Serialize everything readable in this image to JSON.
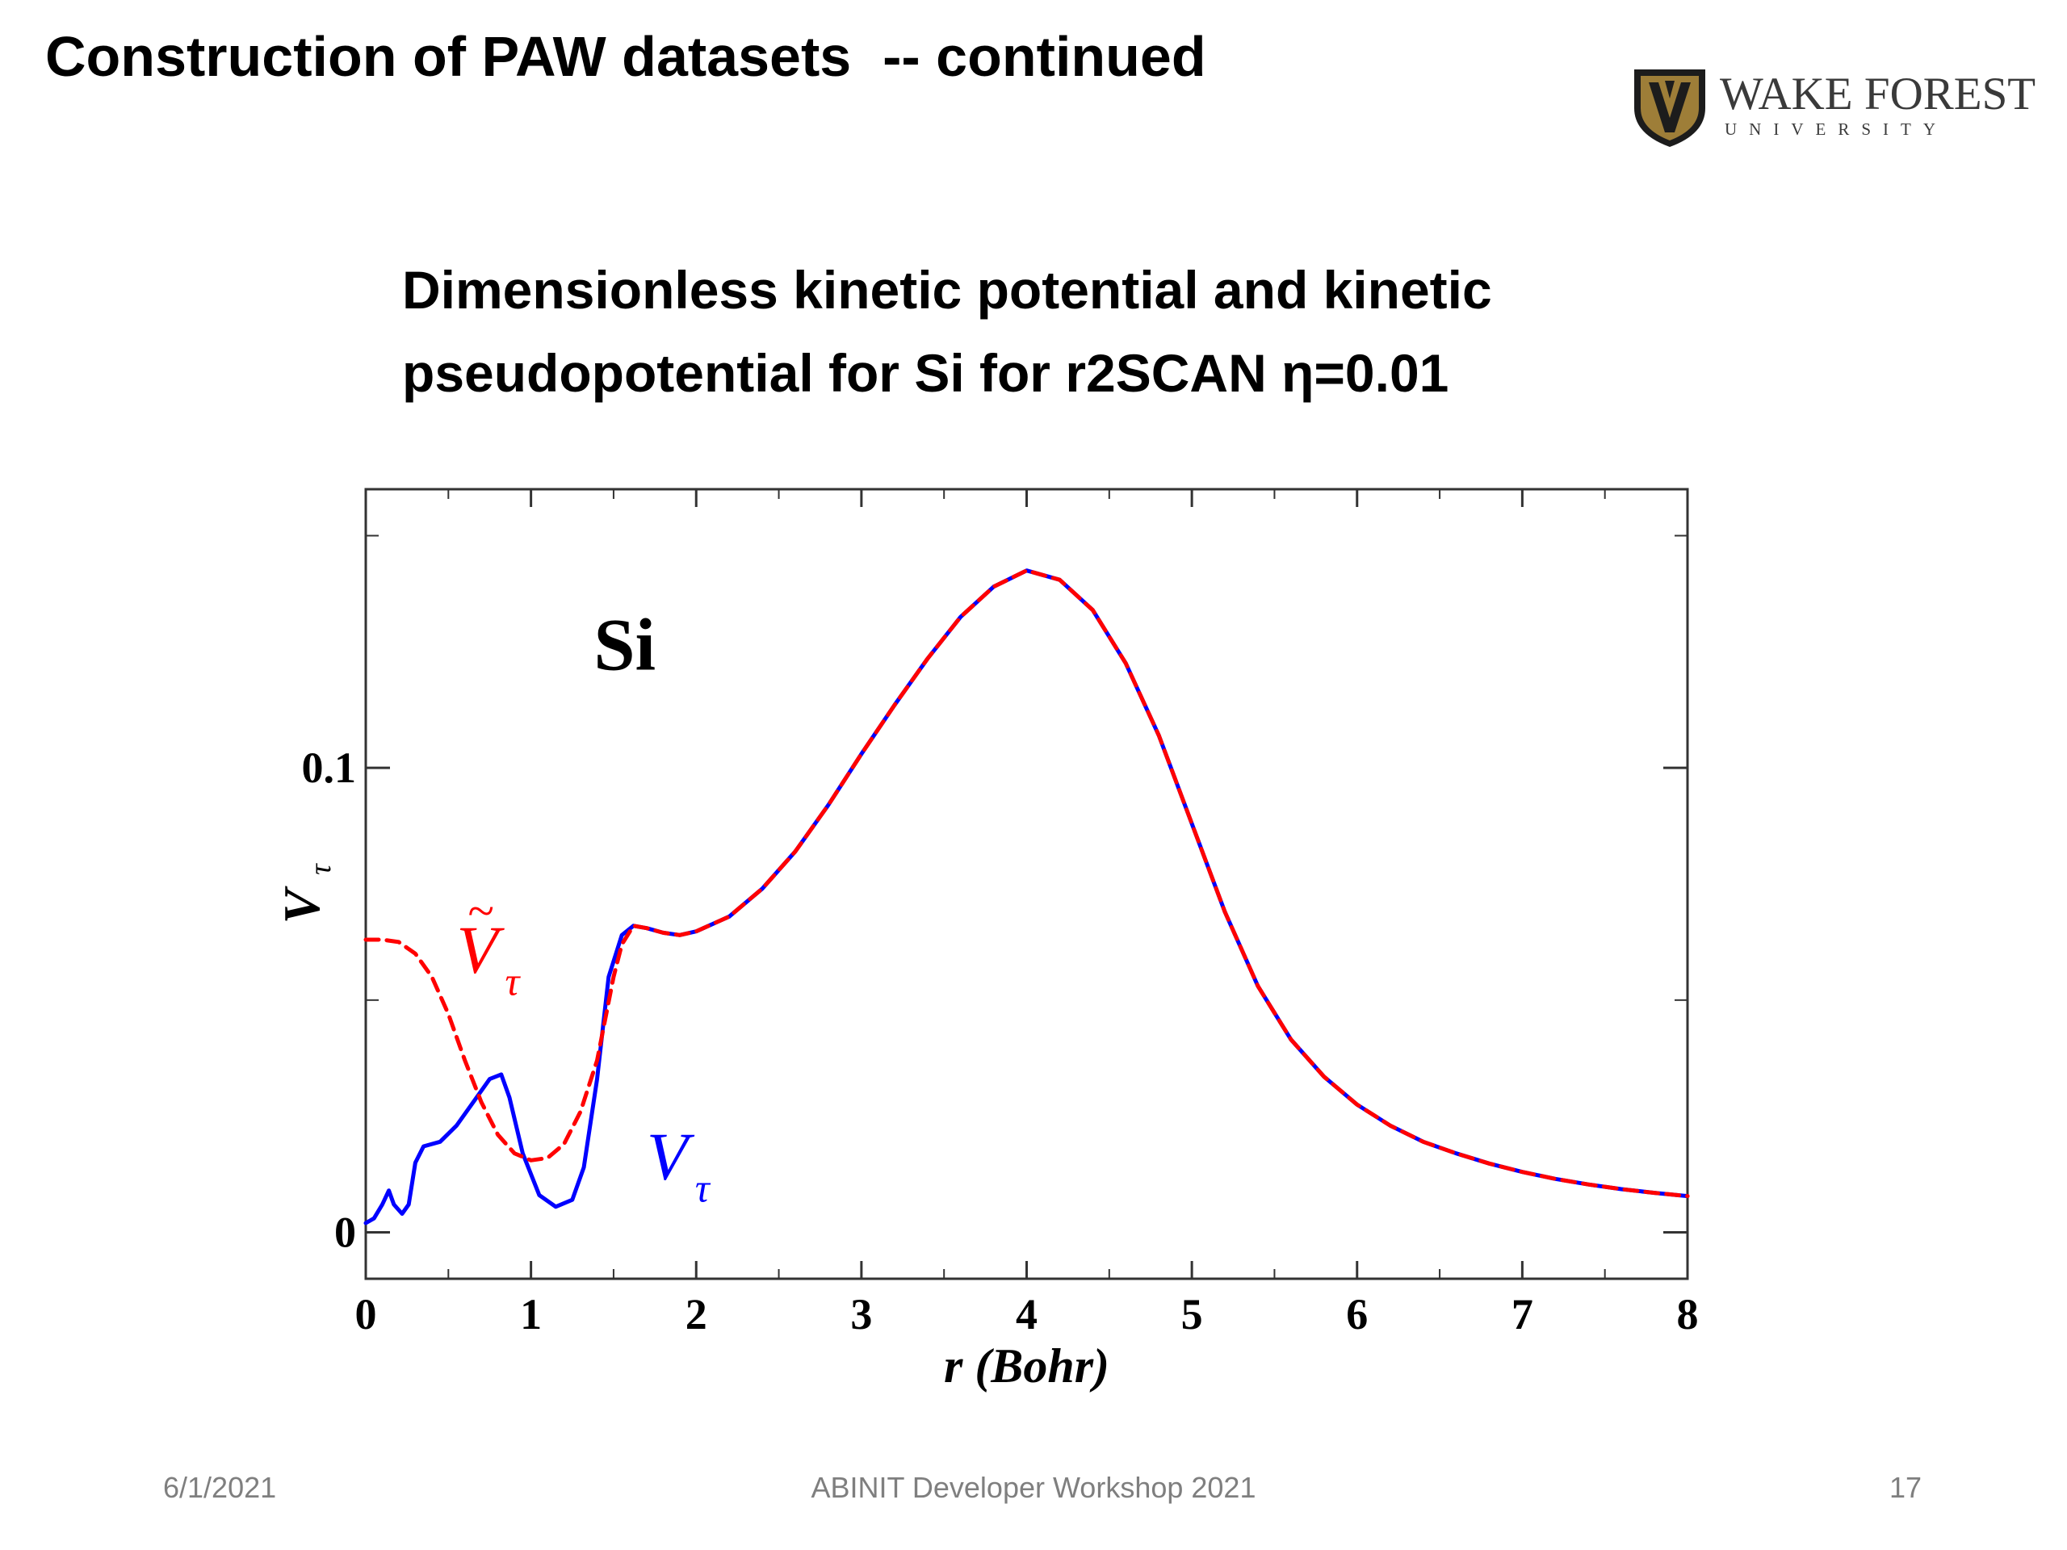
{
  "slide": {
    "title": "Construction of PAW datasets  -- continued",
    "subtitle_line1": "Dimensionless kinetic potential and kinetic",
    "subtitle_line2": "pseudopotential for Si for r2SCAN η=0.01"
  },
  "logo": {
    "name": "WAKE FOREST",
    "sub": "UNIVERSITY",
    "icon": "shield-icon",
    "colors": {
      "gold": "#9e7e38",
      "black": "#1c1c1c"
    }
  },
  "footer": {
    "date": "6/1/2021",
    "event": "ABINIT Developer Workshop 2021",
    "page_number": "17"
  },
  "chart_data": {
    "type": "line",
    "xlabel": "r (Bohr)",
    "ylabel": "V",
    "ylabel_sub": "τ",
    "xlim": [
      0,
      8
    ],
    "ylim": [
      -0.01,
      0.16
    ],
    "x_ticks": [
      "0",
      "1",
      "2",
      "3",
      "4",
      "5",
      "6",
      "7",
      "8"
    ],
    "y_ticks": [
      {
        "value": 0,
        "label": "0"
      },
      {
        "value": 0.1,
        "label": "0.1"
      }
    ],
    "annotations": [
      {
        "text": "Si",
        "x": 1.6,
        "y": 0.126
      }
    ],
    "series": [
      {
        "name": "V",
        "name_sub": "τ",
        "tilde": false,
        "color": "#0000ff",
        "style": "solid",
        "label_at": [
          1.7,
          0.0115
        ],
        "points": [
          [
            0.0,
            0.002
          ],
          [
            0.05,
            0.003
          ],
          [
            0.1,
            0.006
          ],
          [
            0.14,
            0.009
          ],
          [
            0.17,
            0.006
          ],
          [
            0.22,
            0.004
          ],
          [
            0.26,
            0.006
          ],
          [
            0.3,
            0.015
          ],
          [
            0.35,
            0.0185
          ],
          [
            0.45,
            0.0195
          ],
          [
            0.55,
            0.023
          ],
          [
            0.65,
            0.028
          ],
          [
            0.75,
            0.033
          ],
          [
            0.82,
            0.034
          ],
          [
            0.87,
            0.029
          ],
          [
            0.95,
            0.017
          ],
          [
            1.05,
            0.008
          ],
          [
            1.15,
            0.0055
          ],
          [
            1.25,
            0.007
          ],
          [
            1.32,
            0.014
          ],
          [
            1.4,
            0.033
          ],
          [
            1.47,
            0.055
          ],
          [
            1.55,
            0.064
          ],
          [
            1.62,
            0.066
          ],
          [
            1.7,
            0.0655
          ],
          [
            1.8,
            0.0645
          ],
          [
            1.9,
            0.064
          ],
          [
            2.0,
            0.0648
          ],
          [
            2.2,
            0.068
          ],
          [
            2.4,
            0.074
          ],
          [
            2.6,
            0.082
          ],
          [
            2.8,
            0.092
          ],
          [
            3.0,
            0.103
          ],
          [
            3.2,
            0.1135
          ],
          [
            3.4,
            0.1235
          ],
          [
            3.6,
            0.1325
          ],
          [
            3.8,
            0.139
          ],
          [
            4.0,
            0.1425
          ],
          [
            4.2,
            0.1405
          ],
          [
            4.4,
            0.134
          ],
          [
            4.6,
            0.1225
          ],
          [
            4.8,
            0.107
          ],
          [
            5.0,
            0.088
          ],
          [
            5.2,
            0.069
          ],
          [
            5.4,
            0.053
          ],
          [
            5.6,
            0.0415
          ],
          [
            5.8,
            0.0335
          ],
          [
            6.0,
            0.0275
          ],
          [
            6.2,
            0.023
          ],
          [
            6.4,
            0.0195
          ],
          [
            6.6,
            0.017
          ],
          [
            6.8,
            0.0148
          ],
          [
            7.0,
            0.013
          ],
          [
            7.2,
            0.0115
          ],
          [
            7.4,
            0.0103
          ],
          [
            7.6,
            0.0093
          ],
          [
            7.8,
            0.0085
          ],
          [
            8.0,
            0.0078
          ]
        ]
      },
      {
        "name": "V",
        "name_sub": "τ",
        "tilde": true,
        "color": "#ff0000",
        "style": "dashed",
        "label_at": [
          0.55,
          0.056
        ],
        "points": [
          [
            0.0,
            0.063
          ],
          [
            0.1,
            0.063
          ],
          [
            0.2,
            0.0625
          ],
          [
            0.3,
            0.06
          ],
          [
            0.4,
            0.055
          ],
          [
            0.5,
            0.047
          ],
          [
            0.6,
            0.037
          ],
          [
            0.7,
            0.028
          ],
          [
            0.8,
            0.021
          ],
          [
            0.9,
            0.017
          ],
          [
            1.0,
            0.0155
          ],
          [
            1.1,
            0.016
          ],
          [
            1.2,
            0.019
          ],
          [
            1.3,
            0.026
          ],
          [
            1.4,
            0.037
          ],
          [
            1.5,
            0.055
          ],
          [
            1.55,
            0.062
          ],
          [
            1.62,
            0.066
          ],
          [
            1.7,
            0.0655
          ],
          [
            1.8,
            0.0645
          ],
          [
            1.9,
            0.064
          ],
          [
            2.0,
            0.0648
          ],
          [
            2.2,
            0.068
          ],
          [
            2.4,
            0.074
          ],
          [
            2.6,
            0.082
          ],
          [
            2.8,
            0.092
          ],
          [
            3.0,
            0.103
          ],
          [
            3.2,
            0.1135
          ],
          [
            3.4,
            0.1235
          ],
          [
            3.6,
            0.1325
          ],
          [
            3.8,
            0.139
          ],
          [
            4.0,
            0.1425
          ],
          [
            4.2,
            0.1405
          ],
          [
            4.4,
            0.134
          ],
          [
            4.6,
            0.1225
          ],
          [
            4.8,
            0.107
          ],
          [
            5.0,
            0.088
          ],
          [
            5.2,
            0.069
          ],
          [
            5.4,
            0.053
          ],
          [
            5.6,
            0.0415
          ],
          [
            5.8,
            0.0335
          ],
          [
            6.0,
            0.0275
          ],
          [
            6.2,
            0.023
          ],
          [
            6.4,
            0.0195
          ],
          [
            6.6,
            0.017
          ],
          [
            6.8,
            0.0148
          ],
          [
            7.0,
            0.013
          ],
          [
            7.2,
            0.0115
          ],
          [
            7.4,
            0.0103
          ],
          [
            7.6,
            0.0093
          ],
          [
            7.8,
            0.0085
          ],
          [
            8.0,
            0.0078
          ]
        ]
      }
    ],
    "grid": false,
    "legend": "none"
  }
}
